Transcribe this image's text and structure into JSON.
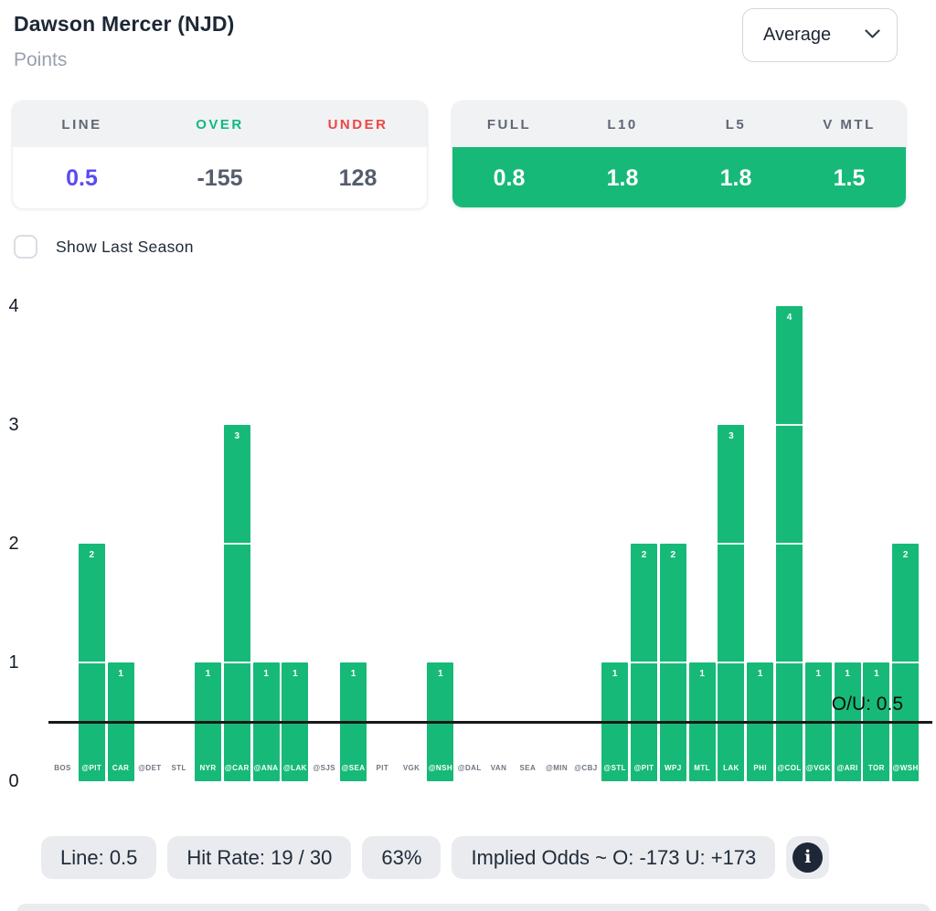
{
  "header": {
    "title": "Dawson Mercer (NJD)",
    "subtitle": "Points",
    "stat_mode": "Average"
  },
  "line_table": {
    "headers": [
      "LINE",
      "OVER",
      "UNDER"
    ],
    "values": [
      "0.5",
      "-155",
      "128"
    ]
  },
  "splits_table": {
    "headers": [
      "FULL",
      "L10",
      "L5",
      "V MTL"
    ],
    "values": [
      "0.8",
      "1.8",
      "1.8",
      "1.5"
    ]
  },
  "controls": {
    "show_last_season_label": "Show Last Season",
    "show_last_season_checked": false
  },
  "chart_data": {
    "type": "bar",
    "title": "",
    "xlabel": "",
    "ylabel": "",
    "categories": [
      "BOS",
      "@PIT",
      "CAR",
      "@DET",
      "STL",
      "NYR",
      "@CAR",
      "@ANA",
      "@LAK",
      "@SJS",
      "@SEA",
      "PIT",
      "VGK",
      "@NSH",
      "@DAL",
      "VAN",
      "SEA",
      "@MIN",
      "@CBJ",
      "@STL",
      "@PIT",
      "WPJ",
      "MTL",
      "LAK",
      "PHI",
      "@COL",
      "@VGK",
      "@ARI",
      "TOR",
      "@WSH"
    ],
    "values": [
      0,
      2,
      1,
      0,
      0,
      1,
      3,
      1,
      1,
      0,
      1,
      0,
      0,
      1,
      0,
      0,
      0,
      0,
      0,
      1,
      2,
      2,
      1,
      3,
      1,
      4,
      1,
      1,
      1,
      2
    ],
    "yticks": [
      0,
      1,
      2,
      3,
      4
    ],
    "ylim": [
      0,
      4
    ],
    "grid": false,
    "bar_color": "#17b978",
    "reference_line": {
      "value": 0.5,
      "label": "O/U: 0.5"
    }
  },
  "footer": {
    "pills": [
      "Line: 0.5",
      "Hit Rate: 19 / 30",
      "63%",
      "Implied Odds ~ O: -173 U: +173"
    ],
    "info_icon": "info-icon"
  },
  "colors": {
    "accent_green": "#17b978",
    "over_green": "#10b981",
    "under_red": "#ef4444",
    "line_indigo": "#5a4af4",
    "pill_gray": "#e9ebee",
    "dark_navy": "#1d2737"
  }
}
